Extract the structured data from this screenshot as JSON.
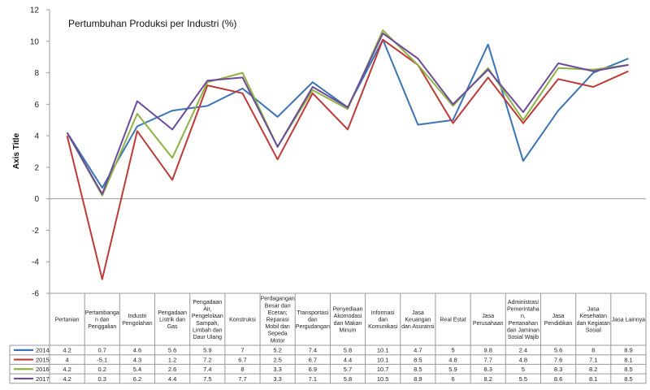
{
  "chart_data": {
    "type": "line",
    "title": "Pertumbuhan Produksi per Industri (%)",
    "ylabel": "Axis Title",
    "xlabel": "",
    "ylim": [
      -6,
      12
    ],
    "yticks": [
      -6,
      -4,
      -2,
      0,
      2,
      4,
      6,
      8,
      10,
      12
    ],
    "grid": false,
    "legend": "data table below plot",
    "categories": [
      "Pertanian",
      "Pertambangan dan Penggalian",
      "Industri Pengolahan",
      "Pengadaan Listrik dan Gas",
      "Pengadaan Air, Pengelolaan Sampah, Limbah dan Daur Ulang",
      "Konstruksi",
      "Perdagangan Besar dan Eceran; Reparasi Mobil dan Sepeda Motor",
      "Transportasi dan Pergudangan",
      "Penyediaan Akomodasi dan Makan Minum",
      "Informasi dan Komunikasi",
      "Jasa Keuangan dan Asuransi",
      "Real Estat",
      "Jasa Perusahaan",
      "Administrasi Pemerintahan, Pertanahan dan Jaminan Sosial Wajib",
      "Jasa Pendidikan",
      "Jasa Kesehatan dan Kegiatan Sosial",
      "Jasa Lainnya"
    ],
    "category_lines": [
      [
        "Pertanian"
      ],
      [
        "Pertambanga",
        "n dan",
        "Penggalian"
      ],
      [
        "Industri",
        "Pengolahan"
      ],
      [
        "Pengadaan",
        "Listrik dan",
        "Gas"
      ],
      [
        "Pengadaan",
        "Air,",
        "Pengelolaan",
        "Sampah,",
        "Limbah dan",
        "Daur Ulang"
      ],
      [
        "Konstruksi"
      ],
      [
        "Perdagangan",
        "Besar dan",
        "Eceran;",
        "Reparasi",
        "Mobil dan",
        "Sepeda",
        "Motor"
      ],
      [
        "Transportasi",
        "dan",
        "Pergudangan"
      ],
      [
        "Penyediaan",
        "Akomodasi",
        "dan Makan",
        "Minum"
      ],
      [
        "Informasi",
        "dan",
        "Komunikasi"
      ],
      [
        "Jasa",
        "Keuangan",
        "dan Asuransi"
      ],
      [
        "Real Estat"
      ],
      [
        "Jasa",
        "Perusahaan"
      ],
      [
        "Administrasi",
        "Pemerintaha",
        "n,",
        "Pertanahan",
        "dan Jaminan",
        "Sosial Wajib"
      ],
      [
        "Jasa",
        "Pendidikan"
      ],
      [
        "Jasa",
        "Kesehatan",
        "dan Kegiatan",
        "Sosial"
      ],
      [
        "Jasa Lainnya"
      ]
    ],
    "series": [
      {
        "name": "2014",
        "color": "#3a74b5",
        "values": [
          4.2,
          0.7,
          4.6,
          5.6,
          5.9,
          7,
          5.2,
          7.4,
          5.8,
          10.1,
          4.7,
          5,
          9.8,
          2.4,
          5.6,
          8,
          8.9
        ]
      },
      {
        "name": "2015",
        "color": "#be3a37",
        "values": [
          4,
          -5.1,
          4.3,
          1.2,
          7.2,
          6.7,
          2.5,
          6.7,
          4.4,
          10.1,
          8.5,
          4.8,
          7.7,
          4.8,
          7.6,
          7.1,
          8.1
        ]
      },
      {
        "name": "2016",
        "color": "#8db342",
        "values": [
          4.2,
          0.2,
          5.4,
          2.6,
          7.4,
          8,
          3.3,
          6.9,
          5.7,
          10.7,
          8.5,
          5.9,
          8.3,
          5,
          8.3,
          8.2,
          8.5
        ]
      },
      {
        "name": "2017",
        "color": "#6d4a9c",
        "values": [
          4.2,
          0.3,
          6.2,
          4.4,
          7.5,
          7.7,
          3.3,
          7.1,
          5.8,
          10.5,
          8.9,
          6,
          8.2,
          5.5,
          8.6,
          8.1,
          8.5
        ]
      }
    ]
  }
}
